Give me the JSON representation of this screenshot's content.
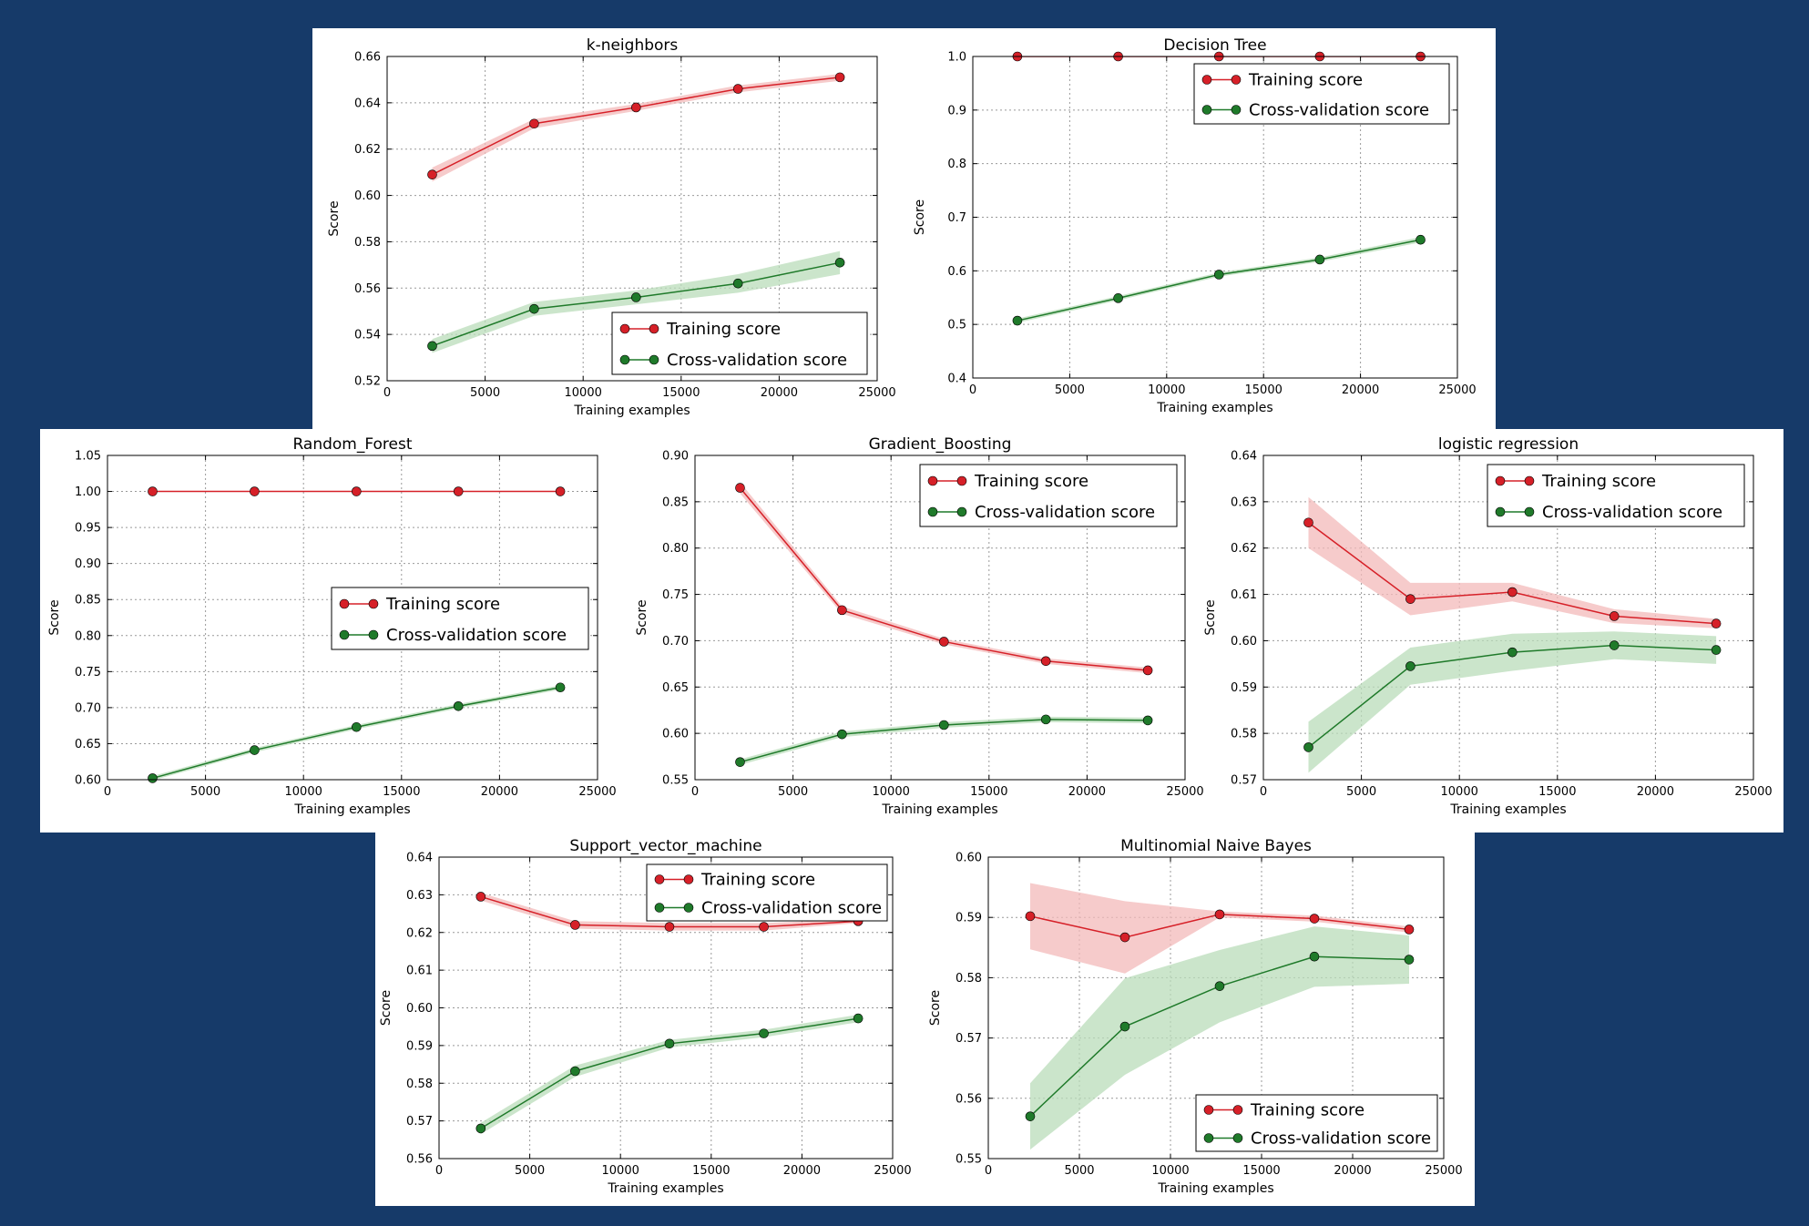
{
  "background_color": "#163a69",
  "colors": {
    "training": "#d62028",
    "cross_validation": "#1f7a2a",
    "training_band": "#f3b9b9",
    "cv_band": "#b9dcb9"
  },
  "legend_labels": {
    "training": "Training score",
    "cross_validation": "Cross-validation score"
  },
  "chart_data": [
    {
      "type": "line",
      "title": "k-neighbors",
      "xlabel": "Training examples",
      "ylabel": "Score",
      "xlim": [
        0,
        25000
      ],
      "ylim": [
        0.52,
        0.66
      ],
      "xticks": [
        0,
        5000,
        10000,
        15000,
        20000,
        25000
      ],
      "yticks": [
        0.52,
        0.54,
        0.56,
        0.58,
        0.6,
        0.62,
        0.64,
        0.66
      ],
      "ytick_decimals": 2,
      "legend": "lower-right",
      "grid": true,
      "x": [
        2300,
        7500,
        12700,
        17900,
        23100
      ],
      "series": [
        {
          "name": "Training score",
          "values": [
            0.609,
            0.631,
            0.638,
            0.646,
            0.651
          ],
          "band": [
            0.003,
            0.002,
            0.0015,
            0.0015,
            0.0015
          ]
        },
        {
          "name": "Cross-validation score",
          "values": [
            0.535,
            0.551,
            0.556,
            0.562,
            0.571
          ],
          "band": [
            0.003,
            0.003,
            0.003,
            0.004,
            0.005
          ]
        }
      ]
    },
    {
      "type": "line",
      "title": "Decision Tree",
      "xlabel": "Training examples",
      "ylabel": "Score",
      "xlim": [
        0,
        25000
      ],
      "ylim": [
        0.4,
        1.0
      ],
      "xticks": [
        0,
        5000,
        10000,
        15000,
        20000,
        25000
      ],
      "yticks": [
        0.4,
        0.5,
        0.6,
        0.7,
        0.8,
        0.9,
        1.0
      ],
      "ytick_decimals": 1,
      "legend": "upper-right",
      "grid": true,
      "x": [
        2300,
        7500,
        12700,
        17900,
        23100
      ],
      "series": [
        {
          "name": "Training score",
          "values": [
            1.0,
            1.0,
            1.0,
            1.0,
            1.0
          ],
          "band": [
            0,
            0,
            0,
            0,
            0
          ]
        },
        {
          "name": "Cross-validation score",
          "values": [
            0.507,
            0.549,
            0.593,
            0.621,
            0.658
          ],
          "band": [
            0.004,
            0.004,
            0.004,
            0.004,
            0.005
          ]
        }
      ]
    },
    {
      "type": "line",
      "title": "Random_Forest",
      "xlabel": "Training examples",
      "ylabel": "Score",
      "xlim": [
        0,
        25000
      ],
      "ylim": [
        0.6,
        1.05
      ],
      "xticks": [
        0,
        5000,
        10000,
        15000,
        20000,
        25000
      ],
      "yticks": [
        0.6,
        0.65,
        0.7,
        0.75,
        0.8,
        0.85,
        0.9,
        0.95,
        1.0,
        1.05
      ],
      "ytick_decimals": 2,
      "legend": "center-right",
      "grid": true,
      "x": [
        2300,
        7500,
        12700,
        17900,
        23100
      ],
      "series": [
        {
          "name": "Training score",
          "values": [
            1.0,
            1.0,
            1.0,
            1.0,
            1.0
          ],
          "band": [
            0,
            0,
            0,
            0,
            0
          ]
        },
        {
          "name": "Cross-validation score",
          "values": [
            0.602,
            0.641,
            0.673,
            0.702,
            0.728
          ],
          "band": [
            0.003,
            0.003,
            0.003,
            0.003,
            0.003
          ]
        }
      ]
    },
    {
      "type": "line",
      "title": "Gradient_Boosting",
      "xlabel": "Training examples",
      "ylabel": "Score",
      "xlim": [
        0,
        25000
      ],
      "ylim": [
        0.55,
        0.9
      ],
      "xticks": [
        0,
        5000,
        10000,
        15000,
        20000,
        25000
      ],
      "yticks": [
        0.55,
        0.6,
        0.65,
        0.7,
        0.75,
        0.8,
        0.85,
        0.9
      ],
      "ytick_decimals": 2,
      "legend": "upper-right",
      "grid": true,
      "x": [
        2300,
        7500,
        12700,
        17900,
        23100
      ],
      "series": [
        {
          "name": "Training score",
          "values": [
            0.865,
            0.733,
            0.699,
            0.678,
            0.668
          ],
          "band": [
            0.006,
            0.004,
            0.003,
            0.003,
            0.003
          ]
        },
        {
          "name": "Cross-validation score",
          "values": [
            0.569,
            0.599,
            0.609,
            0.615,
            0.614
          ],
          "band": [
            0.003,
            0.003,
            0.003,
            0.003,
            0.003
          ]
        }
      ]
    },
    {
      "type": "line",
      "title": "logistic regression",
      "xlabel": "Training examples",
      "ylabel": "Score",
      "xlim": [
        0,
        25000
      ],
      "ylim": [
        0.57,
        0.64
      ],
      "xticks": [
        0,
        5000,
        10000,
        15000,
        20000,
        25000
      ],
      "yticks": [
        0.57,
        0.58,
        0.59,
        0.6,
        0.61,
        0.62,
        0.63,
        0.64
      ],
      "ytick_decimals": 2,
      "legend": "upper-right",
      "grid": true,
      "x": [
        2300,
        7500,
        12700,
        17900,
        23100
      ],
      "series": [
        {
          "name": "Training score",
          "values": [
            0.6255,
            0.609,
            0.6105,
            0.6053,
            0.6037
          ],
          "band": [
            0.0055,
            0.0035,
            0.002,
            0.0015,
            0.001
          ]
        },
        {
          "name": "Cross-validation score",
          "values": [
            0.577,
            0.5945,
            0.5975,
            0.599,
            0.598
          ],
          "band": [
            0.0055,
            0.004,
            0.004,
            0.003,
            0.003
          ]
        }
      ]
    },
    {
      "type": "line",
      "title": "Support_vector_machine",
      "xlabel": "Training examples",
      "ylabel": "Score",
      "xlim": [
        0,
        25000
      ],
      "ylim": [
        0.56,
        0.64
      ],
      "xticks": [
        0,
        5000,
        10000,
        15000,
        20000,
        25000
      ],
      "yticks": [
        0.56,
        0.57,
        0.58,
        0.59,
        0.6,
        0.61,
        0.62,
        0.63,
        0.64
      ],
      "ytick_decimals": 2,
      "legend": "upper-right",
      "grid": true,
      "x": [
        2300,
        7500,
        12700,
        17900,
        23100
      ],
      "series": [
        {
          "name": "Training score",
          "values": [
            0.6295,
            0.622,
            0.6215,
            0.6215,
            0.623
          ],
          "band": [
            0.001,
            0.001,
            0.001,
            0.001,
            0.0005
          ]
        },
        {
          "name": "Cross-validation score",
          "values": [
            0.568,
            0.5832,
            0.5905,
            0.5932,
            0.5972
          ],
          "band": [
            0.0015,
            0.0015,
            0.001,
            0.001,
            0.001
          ]
        }
      ]
    },
    {
      "type": "line",
      "title": "Multinomial Naive Bayes",
      "xlabel": "Training examples",
      "ylabel": "Score",
      "xlim": [
        0,
        25000
      ],
      "ylim": [
        0.55,
        0.6
      ],
      "xticks": [
        0,
        5000,
        10000,
        15000,
        20000,
        25000
      ],
      "yticks": [
        0.55,
        0.56,
        0.57,
        0.58,
        0.59,
        0.6
      ],
      "ytick_decimals": 2,
      "legend": "lower-right",
      "grid": true,
      "x": [
        2300,
        7500,
        12700,
        17900,
        23100
      ],
      "series": [
        {
          "name": "Training score",
          "values": [
            0.5902,
            0.5867,
            0.5905,
            0.5898,
            0.588
          ],
          "band": [
            0.0055,
            0.006,
            0.0005,
            0.0005,
            0.0005
          ]
        },
        {
          "name": "Cross-validation score",
          "values": [
            0.557,
            0.5719,
            0.5786,
            0.5835,
            0.583
          ],
          "band": [
            0.0055,
            0.008,
            0.006,
            0.005,
            0.004
          ]
        }
      ]
    }
  ]
}
